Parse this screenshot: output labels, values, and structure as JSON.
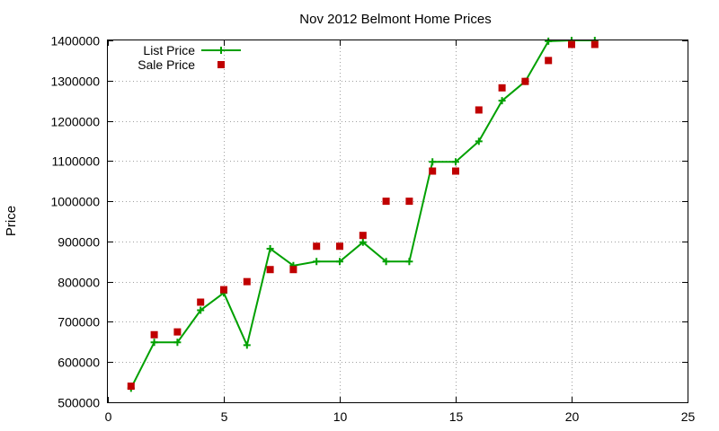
{
  "chart_data": {
    "type": "line",
    "title": "Nov 2012 Belmont Home Prices",
    "xlabel": "",
    "ylabel": "Price",
    "xlim": [
      0,
      25
    ],
    "ylim": [
      500000,
      1400000
    ],
    "xticks": [
      0,
      5,
      10,
      15,
      20,
      25
    ],
    "yticks": [
      500000,
      600000,
      700000,
      800000,
      900000,
      1000000,
      1100000,
      1200000,
      1300000,
      1400000
    ],
    "grid": true,
    "legend_position": "top-left",
    "series": [
      {
        "name": "List Price",
        "style": "line-with-plus-markers",
        "color": "#00a000",
        "x": [
          1,
          2,
          3,
          4,
          5,
          6,
          7,
          8,
          9,
          10,
          11,
          12,
          13,
          14,
          15,
          16,
          17,
          18,
          19,
          20,
          21
        ],
        "y": [
          535000,
          649000,
          649000,
          729000,
          772000,
          642000,
          882000,
          840000,
          850000,
          850000,
          898000,
          850000,
          850000,
          1098000,
          1098000,
          1149000,
          1250000,
          1298000,
          1398000,
          1400000,
          1400000
        ]
      },
      {
        "name": "Sale Price",
        "style": "square-markers",
        "color": "#c00000",
        "x": [
          1,
          2,
          3,
          4,
          5,
          6,
          7,
          8,
          9,
          10,
          11,
          12,
          13,
          14,
          15,
          16,
          17,
          18,
          19,
          20,
          21
        ],
        "y": [
          540000,
          668000,
          675000,
          749000,
          780000,
          800000,
          830000,
          830000,
          888000,
          888000,
          915000,
          1000000,
          1000000,
          1075000,
          1075000,
          1227000,
          1282000,
          1298000,
          1350000,
          1390000,
          1390000
        ]
      }
    ]
  }
}
